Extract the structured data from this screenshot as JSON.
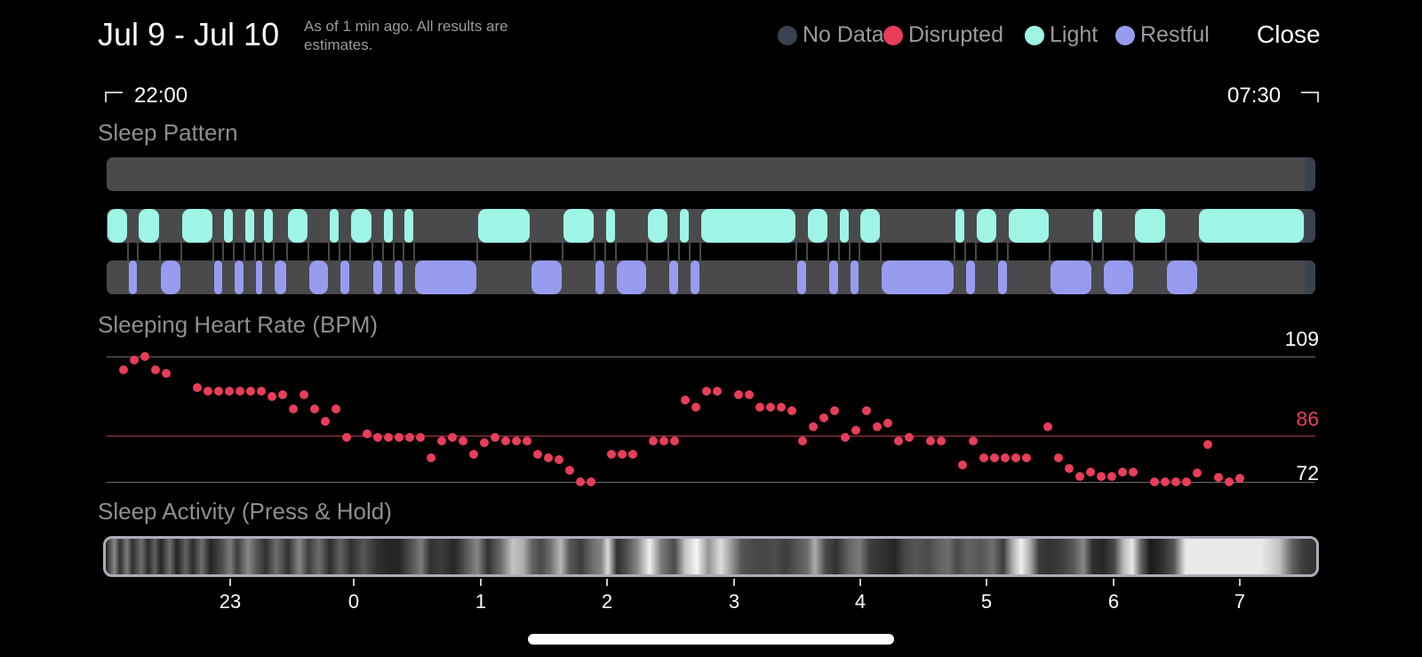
{
  "header": {
    "title": "Jul 9 - Jul 10",
    "subtitle": "As of 1 min ago. All results are estimates.",
    "close_label": "Close"
  },
  "legend": [
    {
      "label": "No Data",
      "color": "#3a4250"
    },
    {
      "label": "Disrupted",
      "color": "#e83e5a"
    },
    {
      "label": "Light",
      "color": "#9ef5e6"
    },
    {
      "label": "Restful",
      "color": "#979cf0"
    }
  ],
  "time_range": {
    "start": "22:00",
    "end": "07:30"
  },
  "sleep_pattern": {
    "title": "Sleep Pattern",
    "light_color": "#9ef5e6",
    "restful_color": "#979cf0",
    "track_color": "#4a4a4c"
  },
  "heart_rate": {
    "title": "Sleeping Heart Rate (BPM)",
    "max": "109",
    "avg": "86",
    "min": "72",
    "dot_color": "#e83e5a"
  },
  "sleep_activity": {
    "title": "Sleep Activity (Press & Hold)"
  },
  "hour_ticks": [
    "23",
    "0",
    "1",
    "2",
    "3",
    "4",
    "5",
    "6",
    "7"
  ]
}
